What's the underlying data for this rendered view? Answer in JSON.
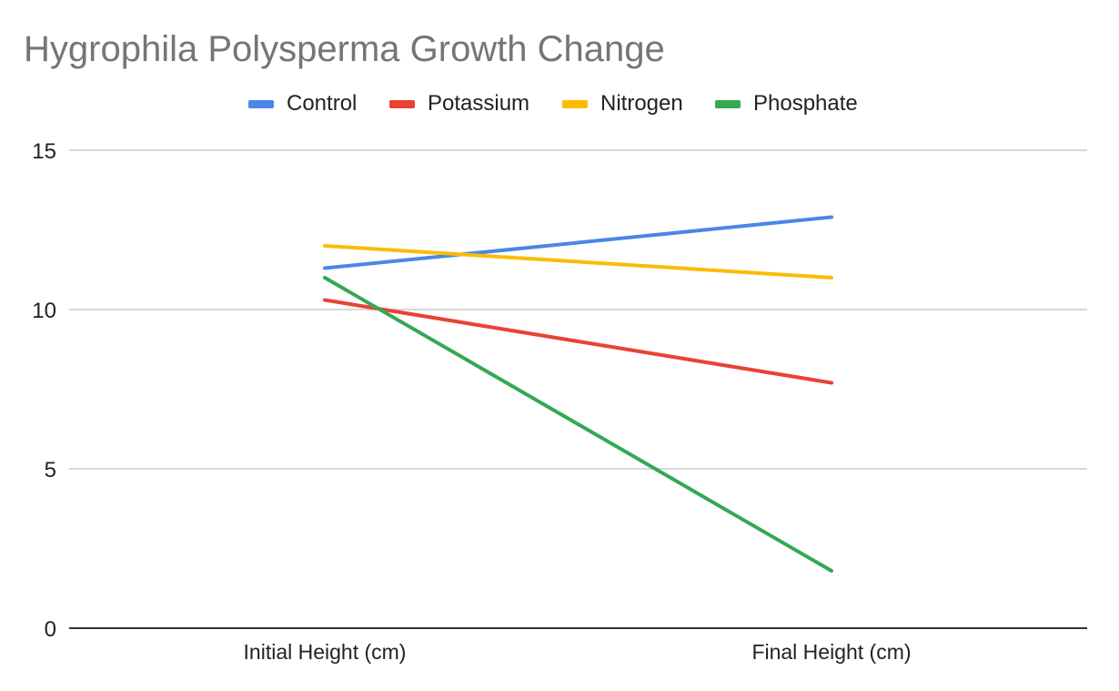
{
  "chart_data": {
    "type": "line",
    "title": "Hygrophila Polysperma Growth Change",
    "categories": [
      "Initial Height (cm)",
      "Final Height (cm)"
    ],
    "series": [
      {
        "name": "Control",
        "color": "#4a86e8",
        "values": [
          11.3,
          12.9
        ]
      },
      {
        "name": "Potassium",
        "color": "#e94235",
        "values": [
          10.3,
          7.7
        ]
      },
      {
        "name": "Nitrogen",
        "color": "#fbbc04",
        "values": [
          12.0,
          11.0
        ]
      },
      {
        "name": "Phosphate",
        "color": "#34a853",
        "values": [
          11.0,
          1.8
        ]
      }
    ],
    "yticks": [
      "0",
      "5",
      "10",
      "15"
    ],
    "ylim": [
      0,
      15
    ],
    "grid": true,
    "legend_position": "top"
  }
}
